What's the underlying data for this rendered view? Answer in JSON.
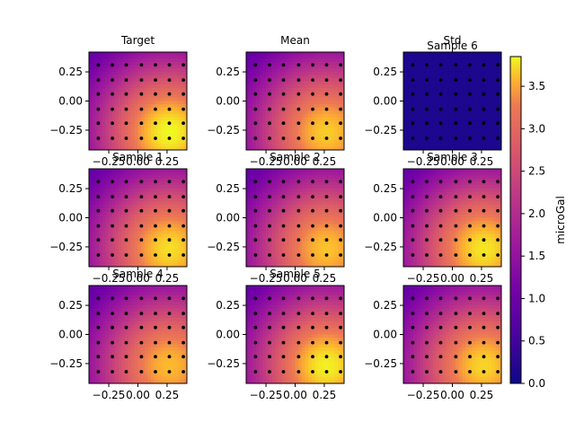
{
  "chart_data": {
    "type": "heatmap",
    "colormap": "plasma",
    "colorbar": {
      "label": "microGal",
      "range": [
        0.0,
        3.85
      ],
      "ticks": [
        "0.0",
        "0.5",
        "1.0",
        "1.5",
        "2.0",
        "2.5",
        "3.0",
        "3.5"
      ]
    },
    "axes": {
      "xlim": [
        -0.42,
        0.42
      ],
      "ylim": [
        -0.42,
        0.42
      ],
      "x_ticks": [
        "-0.25",
        "0.00",
        "0.25"
      ],
      "y_ticks": [
        "0.25",
        "0.00",
        "-0.25"
      ]
    },
    "field": {
      "peak_x": 0.27,
      "peak_y": -0.27,
      "peak_value": 3.85,
      "min_value": 0.35,
      "length_scale": 0.7
    },
    "station_grid": {
      "x": [
        -0.34,
        -0.22,
        -0.1,
        0.03,
        0.15,
        0.27,
        0.39
      ],
      "y": [
        0.31,
        0.18,
        0.06,
        -0.07,
        -0.19,
        -0.32
      ]
    },
    "panels": [
      {
        "title": "Target",
        "kind": "field",
        "scale": 1.0
      },
      {
        "title": "Mean",
        "kind": "field",
        "scale": 0.95
      },
      {
        "title": "Std",
        "title2": "Sample 6",
        "kind": "std",
        "value": 0.15
      },
      {
        "title": "Sample 1",
        "kind": "field",
        "scale": 0.97
      },
      {
        "title": "Sample 2",
        "kind": "field",
        "scale": 0.94
      },
      {
        "title": "Sample 3",
        "kind": "field",
        "scale": 0.98
      },
      {
        "title": "Sample 4",
        "kind": "field",
        "scale": 0.93
      },
      {
        "title": "Sample 5",
        "kind": "field",
        "scale": 0.99
      },
      {
        "title": "",
        "kind": "field",
        "scale": 0.96
      }
    ]
  }
}
